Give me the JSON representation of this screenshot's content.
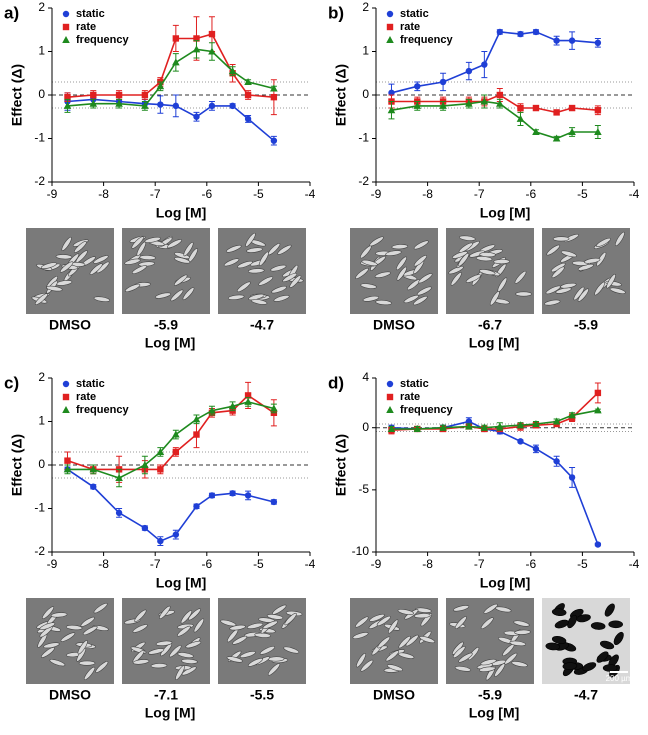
{
  "chart_data": [
    {
      "type": "line",
      "panel": "a)",
      "y_label": "Effect (Δ)",
      "x_label": "Log [M]",
      "xlim": [
        -9,
        -4
      ],
      "xticks": [
        -9,
        -8,
        -7,
        -6,
        -5,
        -4
      ],
      "ylim": [
        -2,
        2
      ],
      "yticks": [
        -2,
        -1,
        0,
        1,
        2
      ],
      "reference_lines": [
        -0.3,
        0,
        0.3
      ],
      "x": [
        -8.7,
        -8.2,
        -7.7,
        -7.2,
        -6.9,
        -6.6,
        -6.2,
        -5.9,
        -5.5,
        -5.2,
        -4.7
      ],
      "series": [
        {
          "name": "static",
          "color": "#1f3fd6",
          "marker": "circle",
          "values": [
            -0.15,
            -0.1,
            -0.15,
            -0.2,
            -0.22,
            -0.25,
            -0.5,
            -0.25,
            -0.25,
            -0.55,
            -1.05
          ],
          "errors": [
            0.2,
            0.15,
            0.15,
            0.1,
            0.2,
            0.25,
            0.1,
            0.1,
            0.05,
            0.08,
            0.1
          ]
        },
        {
          "name": "rate",
          "color": "#e02020",
          "marker": "square",
          "values": [
            -0.05,
            0,
            0,
            0,
            0.3,
            1.3,
            1.3,
            1.4,
            0.5,
            0,
            -0.05
          ],
          "errors": [
            0.1,
            0.1,
            0.1,
            0.1,
            0.1,
            0.3,
            0.5,
            0.4,
            0.2,
            0.1,
            0.4
          ]
        },
        {
          "name": "frequency",
          "color": "#1e8a1e",
          "marker": "triangle",
          "values": [
            -0.25,
            -0.2,
            -0.2,
            -0.25,
            0.2,
            0.75,
            1.05,
            1.0,
            0.55,
            0.3,
            0.15
          ],
          "errors": [
            0.15,
            0.1,
            0.1,
            0.1,
            0.1,
            0.2,
            0.2,
            0.2,
            0.1,
            0.05,
            0.05
          ]
        }
      ],
      "micrograph_labels": [
        "DMSO",
        "-5.9",
        "-4.7"
      ],
      "micrograph_axis_label": "Log [M]"
    },
    {
      "type": "line",
      "panel": "b)",
      "y_label": "Effect (Δ)",
      "x_label": "Log [M]",
      "xlim": [
        -9,
        -4
      ],
      "xticks": [
        -9,
        -8,
        -7,
        -6,
        -5,
        -4
      ],
      "ylim": [
        -2,
        2
      ],
      "yticks": [
        -2,
        -1,
        0,
        1,
        2
      ],
      "reference_lines": [
        -0.3,
        0,
        0.3
      ],
      "x": [
        -8.7,
        -8.2,
        -7.7,
        -7.2,
        -6.9,
        -6.6,
        -6.2,
        -5.9,
        -5.5,
        -5.2,
        -4.7
      ],
      "series": [
        {
          "name": "static",
          "color": "#1f3fd6",
          "marker": "circle",
          "values": [
            0.05,
            0.2,
            0.3,
            0.55,
            0.7,
            1.45,
            1.4,
            1.45,
            1.25,
            1.25,
            1.2
          ],
          "errors": [
            0.2,
            0.1,
            0.2,
            0.2,
            0.3,
            0.05,
            0.05,
            0.05,
            0.1,
            0.2,
            0.1
          ]
        },
        {
          "name": "rate",
          "color": "#e02020",
          "marker": "square",
          "values": [
            -0.15,
            -0.15,
            -0.15,
            -0.15,
            -0.15,
            0,
            -0.3,
            -0.3,
            -0.4,
            -0.3,
            -0.35
          ],
          "errors": [
            0.15,
            0.1,
            0.1,
            0.1,
            0.1,
            0.15,
            0.1,
            0.05,
            0.05,
            0.05,
            0.1
          ]
        },
        {
          "name": "frequency",
          "color": "#1e8a1e",
          "marker": "triangle",
          "values": [
            -0.35,
            -0.25,
            -0.25,
            -0.2,
            -0.15,
            -0.2,
            -0.55,
            -0.85,
            -1.0,
            -0.85,
            -0.85
          ],
          "errors": [
            0.2,
            0.1,
            0.1,
            0.1,
            0.15,
            0.1,
            0.15,
            0.05,
            0.05,
            0.1,
            0.15
          ]
        }
      ],
      "micrograph_labels": [
        "DMSO",
        "-6.7",
        "-5.9"
      ],
      "micrograph_axis_label": "Log [M]"
    },
    {
      "type": "line",
      "panel": "c)",
      "y_label": "Effect (Δ)",
      "x_label": "Log [M]",
      "xlim": [
        -9,
        -4
      ],
      "xticks": [
        -9,
        -8,
        -7,
        -6,
        -5,
        -4
      ],
      "ylim": [
        -2,
        2
      ],
      "yticks": [
        -2,
        -1,
        0,
        1,
        2
      ],
      "reference_lines": [
        -0.3,
        0,
        0.3
      ],
      "x": [
        -8.7,
        -8.2,
        -7.7,
        -7.2,
        -6.9,
        -6.6,
        -6.2,
        -5.9,
        -5.5,
        -5.2,
        -4.7
      ],
      "series": [
        {
          "name": "static",
          "color": "#1f3fd6",
          "marker": "circle",
          "values": [
            -0.1,
            -0.5,
            -1.1,
            -1.45,
            -1.75,
            -1.6,
            -0.95,
            -0.7,
            -0.65,
            -0.7,
            -0.85
          ],
          "errors": [
            0.05,
            0.05,
            0.1,
            0.05,
            0.1,
            0.1,
            0.05,
            0.05,
            0.05,
            0.1,
            0.05
          ]
        },
        {
          "name": "rate",
          "color": "#e02020",
          "marker": "square",
          "values": [
            0.1,
            -0.1,
            -0.1,
            -0.1,
            -0.1,
            0.3,
            0.7,
            1.2,
            1.25,
            1.6,
            1.2
          ],
          "errors": [
            0.2,
            0.1,
            0.3,
            0.2,
            0.1,
            0.1,
            0.3,
            0.1,
            0.1,
            0.3,
            0.3
          ]
        },
        {
          "name": "frequency",
          "color": "#1e8a1e",
          "marker": "triangle",
          "values": [
            -0.1,
            -0.1,
            -0.3,
            0,
            0.3,
            0.7,
            1.05,
            1.25,
            1.35,
            1.45,
            1.3
          ],
          "errors": [
            0.1,
            0.1,
            0.2,
            0.2,
            0.1,
            0.1,
            0.1,
            0.1,
            0.1,
            0.1,
            0.1
          ]
        }
      ],
      "micrograph_labels": [
        "DMSO",
        "-7.1",
        "-5.5"
      ],
      "micrograph_axis_label": "Log [M]"
    },
    {
      "type": "line",
      "panel": "d)",
      "y_label": "Effect (Δ)",
      "x_label": "Log [M]",
      "xlim": [
        -9,
        -4
      ],
      "xticks": [
        -9,
        -8,
        -7,
        -6,
        -5,
        -4
      ],
      "ylim": [
        -10,
        4
      ],
      "yticks": [
        -10,
        -5,
        0,
        4
      ],
      "reference_lines": [
        -0.3,
        0,
        0.3
      ],
      "x": [
        -8.7,
        -8.2,
        -7.7,
        -7.2,
        -6.9,
        -6.6,
        -6.2,
        -5.9,
        -5.5,
        -5.2,
        -4.7
      ],
      "series": [
        {
          "name": "static",
          "color": "#1f3fd6",
          "marker": "circle",
          "values": [
            0,
            -0.1,
            0,
            0.5,
            -0.1,
            -0.3,
            -1.1,
            -1.7,
            -2.7,
            -4,
            -9.4
          ],
          "errors": [
            0.2,
            0.2,
            0.2,
            0.3,
            0.2,
            0.2,
            0.1,
            0.3,
            0.4,
            0.8,
            0.1
          ]
        },
        {
          "name": "rate",
          "color": "#e02020",
          "marker": "square",
          "values": [
            -0.2,
            -0.1,
            -0.1,
            0.1,
            -0.1,
            -0.1,
            0.1,
            0.2,
            0.3,
            0.8,
            2.8
          ],
          "errors": [
            0.3,
            0.2,
            0.2,
            0.2,
            0.2,
            0.2,
            0.3,
            0.2,
            0.2,
            0.3,
            0.8
          ]
        },
        {
          "name": "frequency",
          "color": "#1e8a1e",
          "marker": "triangle",
          "values": [
            -0.1,
            -0.1,
            0,
            0.1,
            0,
            0.1,
            0.2,
            0.3,
            0.5,
            1,
            1.4
          ],
          "errors": [
            0.2,
            0.2,
            0.2,
            0.2,
            0.2,
            0.3,
            0.2,
            0.2,
            0.2,
            0.2,
            0.1
          ]
        }
      ],
      "micrograph_labels": [
        "DMSO",
        "-5.9",
        "-4.7"
      ],
      "micrograph_axis_label": "Log [M]",
      "scale_bar": "200 µm"
    }
  ]
}
